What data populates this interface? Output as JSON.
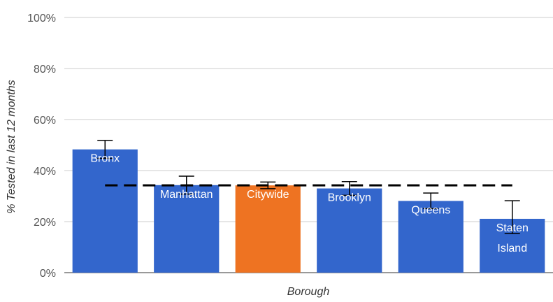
{
  "chart_data": {
    "type": "bar",
    "title": "",
    "xlabel": "Borough",
    "ylabel": "% Tested in last 12 months",
    "ylim": [
      0,
      100
    ],
    "yticks": [
      "0%",
      "20%",
      "40%",
      "60%",
      "80%",
      "100%"
    ],
    "grid": true,
    "categories": [
      "Bronx",
      "Manhattan",
      "Citywide",
      "Brooklyn",
      "Queens",
      "Staten Island"
    ],
    "bar_labels": [
      [
        "Bronx"
      ],
      [
        "Manhattan"
      ],
      [
        "Citywide"
      ],
      [
        "Brooklyn"
      ],
      [
        "Queens"
      ],
      [
        "Staten",
        "Island"
      ]
    ],
    "values": [
      48.3,
      34.3,
      34.2,
      33.0,
      28.1,
      21.1
    ],
    "error_low": [
      44.8,
      30.8,
      32.9,
      30.3,
      25.1,
      15.3
    ],
    "error_high": [
      51.8,
      37.8,
      35.5,
      35.7,
      31.2,
      28.2
    ],
    "reference_line": 34.2,
    "colors": {
      "default": "#3366cc",
      "highlight": "#ee7322",
      "highlight_category": "Citywide",
      "grid": "#cccccc",
      "error_bar": "#000000",
      "reference_line": "#000000"
    }
  }
}
